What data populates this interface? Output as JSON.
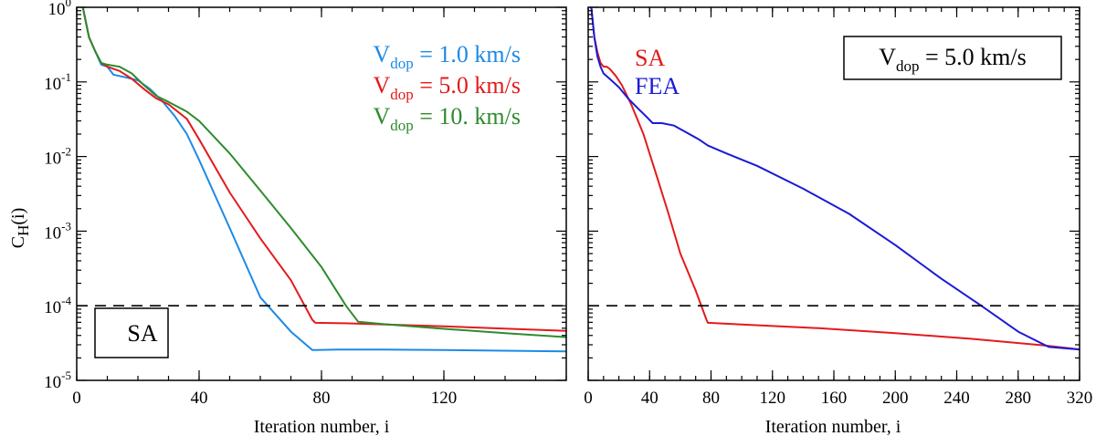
{
  "chart_data": [
    {
      "type": "line",
      "panel": "left",
      "y_scale": "log",
      "xlim": [
        0,
        160
      ],
      "ylim": [
        1e-05,
        1
      ],
      "x_ticks": [
        0,
        40,
        80,
        120
      ],
      "x_tick_labels": [
        "0",
        "40",
        "80",
        "120"
      ],
      "y_ticks": [
        0,
        -1,
        -2,
        -3,
        -4,
        -5
      ],
      "y_tick_labels": [
        {
          "base": "10",
          "exp": "0"
        },
        {
          "base": "10",
          "exp": "-1"
        },
        {
          "base": "10",
          "exp": "-2"
        },
        {
          "base": "10",
          "exp": "-3"
        },
        {
          "base": "10",
          "exp": "-4"
        },
        {
          "base": "10",
          "exp": "-5"
        }
      ],
      "xlabel": "Iteration number, i",
      "ylabel": {
        "main": "C",
        "sub": "H",
        "rest": "(i)"
      },
      "threshold": 0.0001,
      "method_label": "SA",
      "legend_position": "top-right",
      "series": [
        {
          "name": "Vdop = 1.0 km/s",
          "label": {
            "main": "V",
            "sub": "dop",
            "rest": " = 1.0 km/s"
          },
          "color": "#1c8ae6",
          "x": [
            2,
            4,
            6,
            8,
            10,
            12,
            16,
            20,
            24,
            28,
            32,
            36,
            40,
            50,
            60,
            70,
            77,
            78,
            85,
            100,
            120,
            160
          ],
          "y": [
            1.0,
            0.4,
            0.26,
            0.17,
            0.16,
            0.125,
            0.115,
            0.105,
            0.08,
            0.055,
            0.035,
            0.02,
            0.009,
            0.0011,
            0.00013,
            4.5e-05,
            2.55e-05,
            2.55e-05,
            2.58e-05,
            2.58e-05,
            2.55e-05,
            2.45e-05
          ]
        },
        {
          "name": "Vdop = 5.0 km/s",
          "label": {
            "main": "V",
            "sub": "dop",
            "rest": " = 5.0 km/s"
          },
          "color": "#e31a1c",
          "x": [
            2,
            4,
            6,
            8,
            10,
            14,
            18,
            22,
            26,
            30,
            36,
            40,
            50,
            60,
            70,
            77,
            78,
            90,
            120,
            160
          ],
          "y": [
            1.0,
            0.4,
            0.26,
            0.18,
            0.16,
            0.14,
            0.11,
            0.08,
            0.06,
            0.05,
            0.032,
            0.017,
            0.0033,
            0.0008,
            0.00022,
            6.5e-05,
            5.9e-05,
            5.8e-05,
            5.3e-05,
            4.6e-05
          ]
        },
        {
          "name": "Vdop = 10. km/s",
          "label": {
            "main": "V",
            "sub": "dop",
            "rest": " = 10. km/s"
          },
          "color": "#2e8b2e",
          "x": [
            2,
            4,
            6,
            8,
            10,
            14,
            18,
            22,
            26,
            30,
            36,
            40,
            50,
            60,
            70,
            80,
            88,
            92,
            100,
            120,
            140,
            160
          ],
          "y": [
            1.0,
            0.4,
            0.26,
            0.18,
            0.17,
            0.16,
            0.13,
            0.09,
            0.065,
            0.054,
            0.04,
            0.03,
            0.011,
            0.0035,
            0.0011,
            0.00033,
            0.0001,
            6.1e-05,
            5.7e-05,
            4.9e-05,
            4.3e-05,
            3.8e-05
          ]
        }
      ]
    },
    {
      "type": "line",
      "panel": "right",
      "y_scale": "log",
      "xlim": [
        0,
        320
      ],
      "ylim": [
        1e-05,
        1
      ],
      "x_ticks": [
        0,
        40,
        80,
        120,
        160,
        200,
        240,
        280,
        320
      ],
      "x_tick_labels": [
        "0",
        "40",
        "80",
        "120",
        "160",
        "200",
        "240",
        "280",
        "320"
      ],
      "xlabel": "Iteration number, i",
      "threshold": 0.0001,
      "velocity_label": {
        "main": "V",
        "sub": "dop",
        "rest": " = 5.0 km/s"
      },
      "legend_position": "top-left",
      "series": [
        {
          "name": "SA",
          "color": "#e31a1c",
          "x": [
            2,
            4,
            6,
            8,
            10,
            12,
            14,
            18,
            22,
            28,
            36,
            44,
            52,
            60,
            70,
            77,
            78,
            100,
            150,
            200,
            250,
            300,
            320
          ],
          "y": [
            1.0,
            0.4,
            0.25,
            0.18,
            0.16,
            0.16,
            0.15,
            0.12,
            0.09,
            0.05,
            0.02,
            0.006,
            0.0018,
            0.0005,
            0.00016,
            6.5e-05,
            5.9e-05,
            5.6e-05,
            5e-05,
            4.3e-05,
            3.6e-05,
            2.9e-05,
            2.6e-05
          ]
        },
        {
          "name": "FEA",
          "color": "#1a1ad6",
          "x": [
            2,
            4,
            6,
            8,
            10,
            14,
            20,
            26,
            32,
            38,
            42,
            48,
            56,
            64,
            72,
            78,
            90,
            110,
            140,
            170,
            200,
            230,
            256,
            280,
            300,
            310,
            320
          ],
          "y": [
            1.0,
            0.4,
            0.22,
            0.16,
            0.13,
            0.11,
            0.085,
            0.06,
            0.045,
            0.034,
            0.028,
            0.028,
            0.026,
            0.021,
            0.017,
            0.014,
            0.011,
            0.0075,
            0.0037,
            0.0017,
            0.00065,
            0.00023,
            0.0001,
            4.5e-05,
            2.8e-05,
            2.7e-05,
            2.6e-05
          ]
        }
      ]
    }
  ]
}
